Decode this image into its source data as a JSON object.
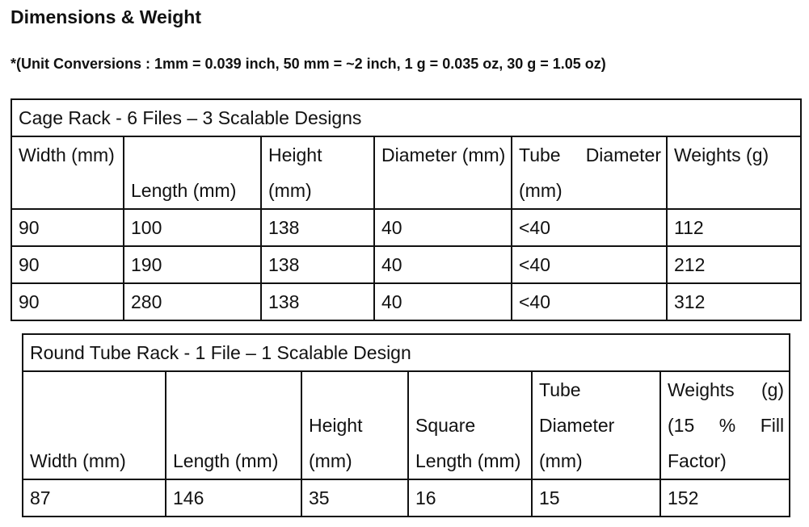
{
  "heading": "Dimensions & Weight",
  "conversion_note": "*(Unit Conversions : 1mm = 0.039 inch, 50 mm = ~2 inch, 1 g = 0.035 oz, 30 g = 1.05 oz)",
  "cage_rack": {
    "title": "Cage Rack - 6 Files – 3 Scalable Designs",
    "headers": [
      "Width (mm)",
      "Length (mm)",
      "Height (mm)",
      "Diameter (mm)",
      "Tube Diameter (mm)",
      "Weights (g)"
    ],
    "rows": [
      [
        "90",
        "100",
        "138",
        "40",
        "<40",
        "112"
      ],
      [
        "90",
        "190",
        "138",
        "40",
        "<40",
        "212"
      ],
      [
        "90",
        "280",
        "138",
        "40",
        "<40",
        "312"
      ]
    ]
  },
  "round_tube_rack": {
    "title": "Round Tube Rack - 1 File – 1 Scalable Design",
    "headers": [
      "Width (mm)",
      "Length (mm)",
      "Height (mm)",
      "Square Length (mm)",
      "Tube Diameter (mm)",
      "Weights (g) (15 % Fill Factor)"
    ],
    "rows": [
      [
        "87",
        "146",
        "35",
        "16",
        "15",
        "152"
      ]
    ]
  }
}
